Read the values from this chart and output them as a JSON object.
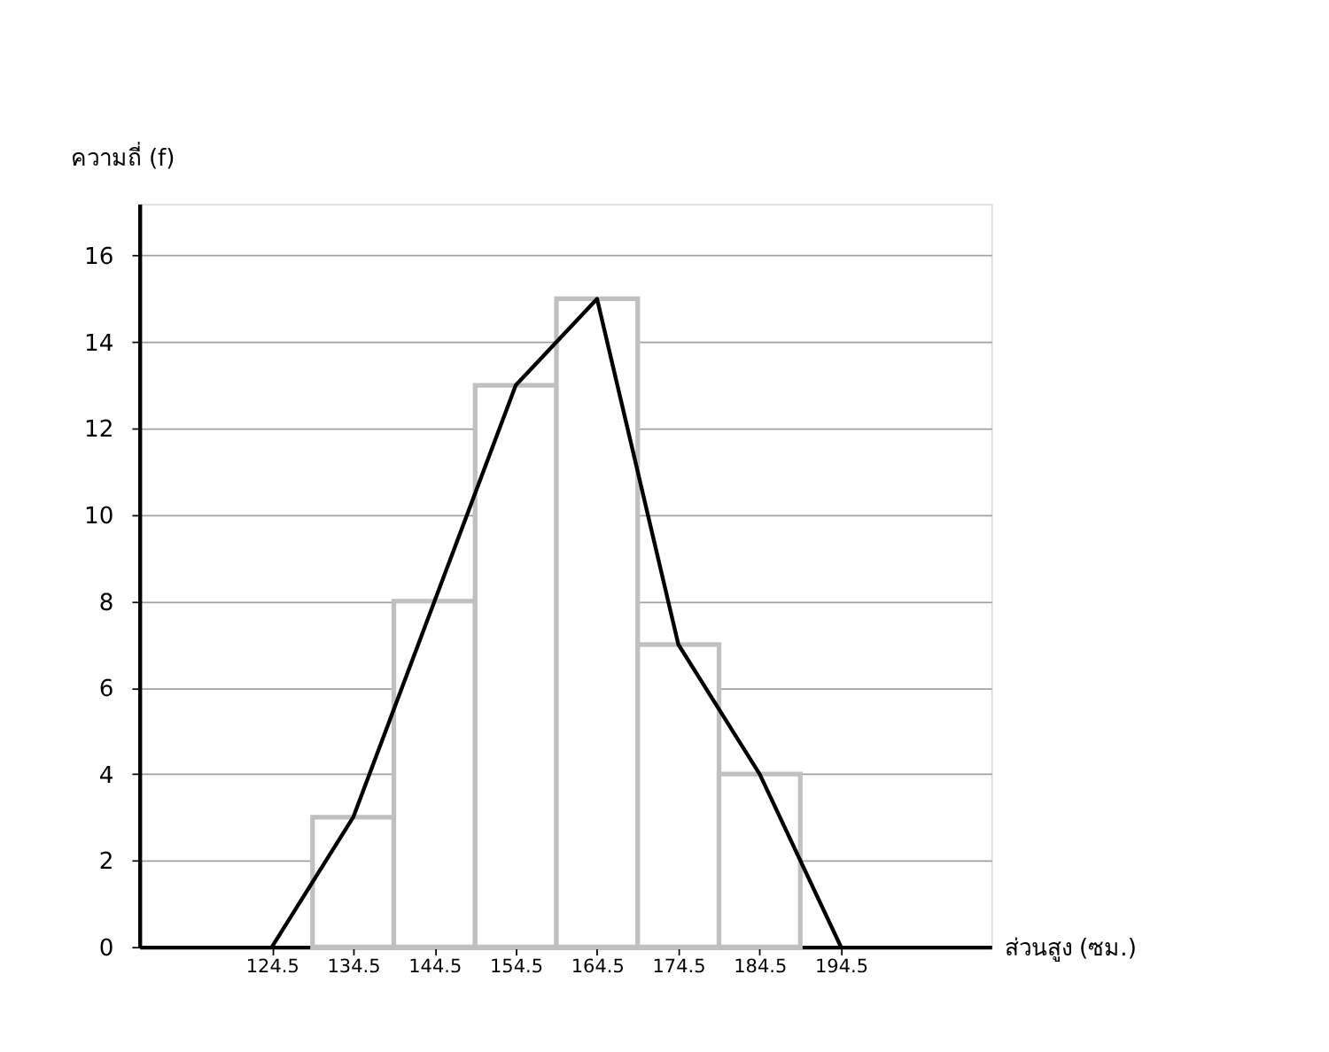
{
  "chart_data": {
    "type": "histogram",
    "xlabel": "ส่วนสูง (ซม.)",
    "ylabel": "ความถี่ (f)",
    "xlim": [
      108.2,
      213
    ],
    "xticks": [
      124.5,
      134.5,
      144.5,
      154.5,
      164.5,
      174.5,
      184.5,
      194.5
    ],
    "ylim": [
      0,
      17.2
    ],
    "yticks": [
      0,
      2,
      4,
      6,
      8,
      10,
      12,
      14,
      16
    ],
    "grid": "y",
    "series": [
      {
        "bins": [
          129.5,
          139.5,
          149.5,
          159.5,
          169.5,
          179.5,
          189.5
        ],
        "values": [
          3,
          8,
          13,
          15,
          7,
          4
        ],
        "color": "#c0c0c0"
      },
      {
        "type": "line",
        "x": [
          124.5,
          134.5,
          144.5,
          154.5,
          164.5,
          174.5,
          184.5,
          194.5
        ],
        "values": [
          0,
          3,
          8,
          13,
          15,
          7,
          4,
          0
        ],
        "color": "#000000"
      }
    ]
  }
}
